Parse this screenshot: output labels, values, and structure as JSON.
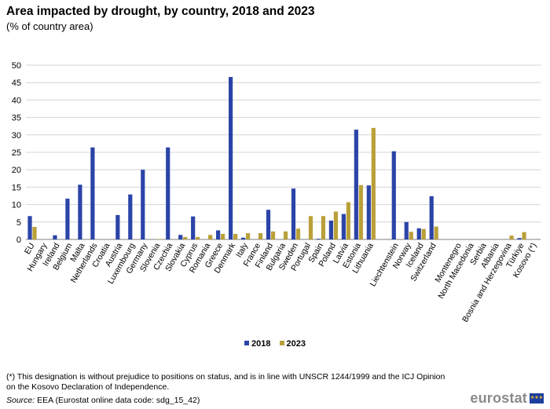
{
  "title": "Area impacted by drought, by country, 2018 and 2023",
  "subtitle": "(% of country area)",
  "chart_data": {
    "type": "bar",
    "title": "Area impacted by drought, by country, 2018 and 2023",
    "ylabel": "% of country area",
    "ylim": [
      0,
      50
    ],
    "yticks": [
      0,
      5,
      10,
      15,
      20,
      25,
      30,
      35,
      40,
      45,
      50
    ],
    "grid": true,
    "legend": "bottom-center",
    "categories": [
      "EU",
      "Hungary",
      "Ireland",
      "Belgium",
      "Malta",
      "Netherlands",
      "Croatia",
      "Austria",
      "Luxembourg",
      "Germany",
      "Slovenia",
      "Czechia",
      "Slovakia",
      "Cyprus",
      "Romania",
      "Greece",
      "Denmark",
      "Italy",
      "France",
      "Finland",
      "Bulgaria",
      "Sweden",
      "Portugal",
      "Spain",
      "Poland",
      "Latvia",
      "Estonia",
      "Lithuania",
      "",
      "Liechtenstein",
      "Norway",
      "Iceland",
      "Switzerland",
      "",
      "Montenegro",
      "North Macedonia",
      "Serbia",
      "Albania",
      "Bosnia and Herzegovina",
      "Türkiye",
      "Kosovo (*)"
    ],
    "series": [
      {
        "name": "2018",
        "color": "#2b44a8",
        "values": [
          6.7,
          0,
          1.2,
          11.7,
          15.7,
          26.4,
          0,
          7.0,
          12.9,
          20.0,
          0,
          26.4,
          1.3,
          6.6,
          0,
          2.6,
          46.6,
          0.5,
          0,
          8.5,
          0,
          14.6,
          0,
          0.2,
          5.4,
          7.3,
          31.5,
          15.5,
          null,
          25.3,
          5.0,
          3.2,
          12.4,
          null,
          0,
          0,
          0,
          0,
          0,
          0.4,
          0
        ]
      },
      {
        "name": "2023",
        "color": "#b9a03a",
        "values": [
          3.6,
          0,
          0,
          0,
          0,
          0,
          0,
          0,
          0,
          0,
          0.1,
          0,
          0.7,
          0.7,
          1.3,
          1.6,
          1.6,
          1.8,
          1.8,
          2.3,
          2.3,
          3.1,
          6.7,
          6.7,
          8.0,
          10.7,
          15.6,
          32.0,
          null,
          0,
          2.2,
          3.0,
          3.7,
          null,
          0,
          0,
          0,
          0,
          1.1,
          2.1,
          0
        ]
      }
    ]
  },
  "legend": {
    "items": [
      {
        "label": "2018",
        "color": "#2b44a8"
      },
      {
        "label": "2023",
        "color": "#b9a03a"
      }
    ]
  },
  "footnote": "(*) This designation is without prejudice to positions on status, and is in line with UNSCR 1244/1999 and the ICJ Opinion on the Kosovo Declaration of Independence.",
  "source": {
    "label": "Source:",
    "text": "EEA (Eurostat online data code: sdg_15_42)"
  },
  "logo": {
    "text": "eurostat",
    "icon": "eu-flag-icon"
  }
}
